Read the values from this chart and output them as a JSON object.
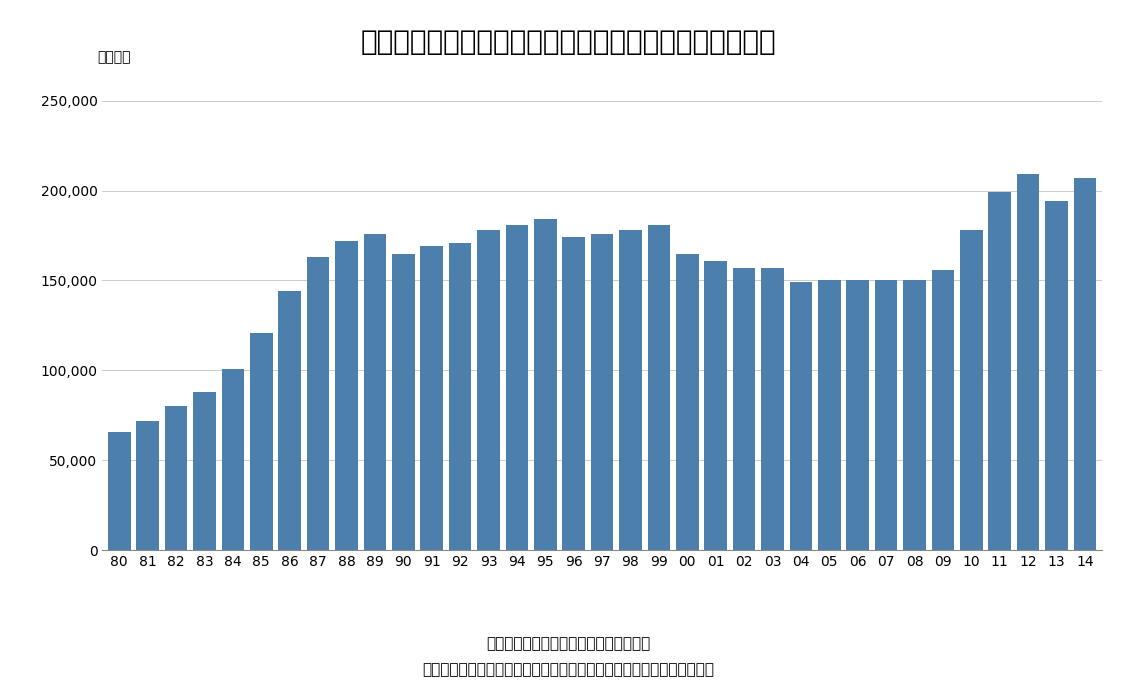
{
  "title": "グラフ４　生保業界の個人保険からの保険料収入の推移",
  "ylabel": "（億円）",
  "footnote1": "（資料）生保協会の統計データより作成",
  "footnote2": "（期間）途中から民間生保に加わった「かんぽ生命」の数値は含まない",
  "bar_color": "#4d7fad",
  "background_color": "#ffffff",
  "categories": [
    "80",
    "81",
    "82",
    "83",
    "84",
    "85",
    "86",
    "87",
    "88",
    "89",
    "90",
    "91",
    "92",
    "93",
    "94",
    "95",
    "96",
    "97",
    "98",
    "99",
    "00",
    "01",
    "02",
    "03",
    "04",
    "05",
    "06",
    "07",
    "08",
    "09",
    "10",
    "11",
    "12",
    "13",
    "14"
  ],
  "values": [
    66000,
    72000,
    80000,
    88000,
    101000,
    121000,
    144000,
    163000,
    172000,
    176000,
    165000,
    169000,
    171000,
    178000,
    181000,
    184000,
    174000,
    176000,
    178000,
    181000,
    165000,
    161000,
    157000,
    157000,
    149000,
    150000,
    150000,
    150000,
    150000,
    156000,
    178000,
    199000,
    209000,
    194000,
    207000
  ],
  "ylim": [
    0,
    260000
  ],
  "yticks": [
    0,
    50000,
    100000,
    150000,
    200000,
    250000
  ],
  "title_fontsize": 20,
  "tick_fontsize": 10,
  "ylabel_fontsize": 10,
  "footnote_fontsize": 11
}
